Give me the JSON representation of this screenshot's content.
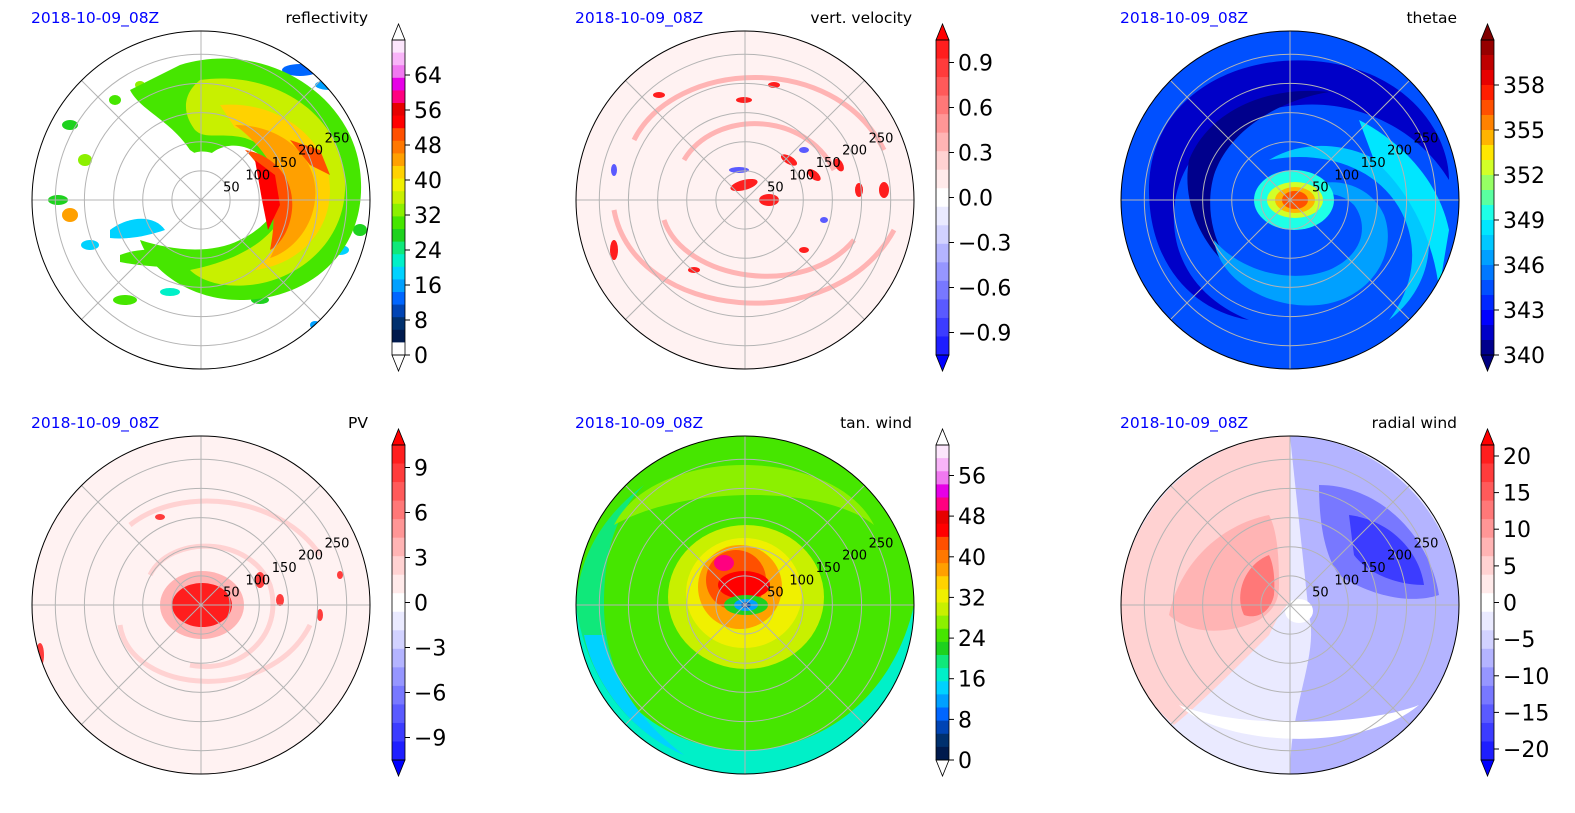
{
  "chart_data": [
    {
      "type": "heatmap",
      "projection": "polar",
      "timestamp": "2018-10-09_08Z",
      "title": "reflectivity",
      "radial_ticks": [
        "50",
        "100",
        "150",
        "200",
        "250"
      ],
      "colorbar": {
        "ticks": [
          "0",
          "8",
          "16",
          "24",
          "32",
          "40",
          "48",
          "56",
          "64"
        ],
        "tick_values": [
          0,
          8,
          16,
          24,
          32,
          40,
          48,
          56,
          64
        ],
        "range": [
          0,
          72
        ],
        "extend": "both",
        "colors": [
          "#ffffff",
          "#001a4d",
          "#00306e",
          "#0044b4",
          "#0066ff",
          "#00a0ff",
          "#00d2ff",
          "#00f0c8",
          "#10e87a",
          "#1ed21e",
          "#46e600",
          "#8cf000",
          "#c8f000",
          "#f0f000",
          "#ffd200",
          "#ffa000",
          "#ff7800",
          "#ff5000",
          "#ff0000",
          "#e60000",
          "#ff0080",
          "#e600e6",
          "#f078f0",
          "#f8b4f8",
          "#fce6fc"
        ],
        "end_colors": [
          "#ffffff",
          "#ffffff"
        ]
      }
    },
    {
      "type": "heatmap",
      "projection": "polar",
      "timestamp": "2018-10-09_08Z",
      "title": "vert. velocity",
      "radial_ticks": [
        "50",
        "100",
        "150",
        "200",
        "250"
      ],
      "colorbar": {
        "ticks": [
          "0.9",
          "0.6",
          "0.3",
          "0.0",
          "−0.3",
          "−0.6",
          "−0.9"
        ],
        "tick_values": [
          0.9,
          0.6,
          0.3,
          0.0,
          -0.3,
          -0.6,
          -0.9
        ],
        "range": [
          -1.05,
          1.05
        ],
        "extend": "both",
        "colors": [
          "#1e1eff",
          "#3c3cff",
          "#5a5aff",
          "#7878ff",
          "#9696ff",
          "#b4b4ff",
          "#d2d2ff",
          "#eaeaff",
          "#ffffff",
          "#ffeaea",
          "#ffd2d2",
          "#ffb4b4",
          "#ff9696",
          "#ff7878",
          "#ff5a5a",
          "#ff3c3c",
          "#ff1e1e"
        ],
        "end_colors": [
          "#0000ff",
          "#ff0000"
        ]
      }
    },
    {
      "type": "heatmap",
      "projection": "polar",
      "timestamp": "2018-10-09_08Z",
      "title": "thetae",
      "radial_ticks": [
        "50",
        "100",
        "150",
        "200",
        "250"
      ],
      "colorbar": {
        "ticks": [
          "340",
          "343",
          "346",
          "349",
          "352",
          "355",
          "358"
        ],
        "tick_values": [
          340,
          343,
          346,
          349,
          352,
          355,
          358
        ],
        "range": [
          340,
          361
        ],
        "extend": "both",
        "colors": [
          "#00008c",
          "#0000c8",
          "#0000ff",
          "#0028ff",
          "#0050ff",
          "#0078ff",
          "#00a0ff",
          "#00c8ff",
          "#00e6ff",
          "#1effe6",
          "#5affa0",
          "#96ff64",
          "#d2ff28",
          "#ffe600",
          "#ffb400",
          "#ff8200",
          "#ff5000",
          "#ff1e00",
          "#e60000",
          "#be0000",
          "#960000"
        ],
        "end_colors": [
          "#000080",
          "#800000"
        ]
      }
    },
    {
      "type": "heatmap",
      "projection": "polar",
      "timestamp": "2018-10-09_08Z",
      "title": "PV",
      "radial_ticks": [
        "50",
        "100",
        "150",
        "200",
        "250"
      ],
      "colorbar": {
        "ticks": [
          "9",
          "6",
          "3",
          "0",
          "−3",
          "−6",
          "−9"
        ],
        "tick_values": [
          9,
          6,
          3,
          0,
          -3,
          -6,
          -9
        ],
        "range": [
          -10.5,
          10.5
        ],
        "extend": "both",
        "colors": [
          "#1e1eff",
          "#3c3cff",
          "#5a5aff",
          "#7878ff",
          "#9696ff",
          "#b4b4ff",
          "#d2d2ff",
          "#eaeaff",
          "#ffffff",
          "#ffeaea",
          "#ffd2d2",
          "#ffb4b4",
          "#ff9696",
          "#ff7878",
          "#ff5a5a",
          "#ff3c3c",
          "#ff1e1e"
        ],
        "end_colors": [
          "#0000ff",
          "#ff0000"
        ]
      }
    },
    {
      "type": "heatmap",
      "projection": "polar",
      "timestamp": "2018-10-09_08Z",
      "title": "tan. wind",
      "radial_ticks": [
        "50",
        "100",
        "150",
        "200",
        "250"
      ],
      "colorbar": {
        "ticks": [
          "0",
          "8",
          "16",
          "24",
          "32",
          "40",
          "48",
          "56"
        ],
        "tick_values": [
          0,
          8,
          16,
          24,
          32,
          40,
          48,
          56
        ],
        "range": [
          0,
          62
        ],
        "extend": "both",
        "colors": [
          "#001a4d",
          "#00306e",
          "#0044b4",
          "#0066ff",
          "#00a0ff",
          "#00d2ff",
          "#00f0c8",
          "#10e87a",
          "#1ed21e",
          "#46e600",
          "#8cf000",
          "#c8f000",
          "#f0f000",
          "#ffd200",
          "#ffa000",
          "#ff7800",
          "#ff5000",
          "#ff0000",
          "#e60000",
          "#ff0080",
          "#e600e6",
          "#f078f0",
          "#f8b4f8",
          "#fce6fc"
        ],
        "end_colors": [
          "#ffffff",
          "#ffffff"
        ]
      }
    },
    {
      "type": "heatmap",
      "projection": "polar",
      "timestamp": "2018-10-09_08Z",
      "title": "radial wind",
      "radial_ticks": [
        "50",
        "100",
        "150",
        "200",
        "250"
      ],
      "colorbar": {
        "ticks": [
          "20",
          "15",
          "10",
          "5",
          "0",
          "−5",
          "−10",
          "−15",
          "−20"
        ],
        "tick_values": [
          20,
          15,
          10,
          5,
          0,
          -5,
          -10,
          -15,
          -20
        ],
        "range": [
          -21.5,
          21.5
        ],
        "extend": "both",
        "colors": [
          "#1e1eff",
          "#3c3cff",
          "#5a5aff",
          "#7878ff",
          "#9696ff",
          "#b4b4ff",
          "#d2d2ff",
          "#eaeaff",
          "#ffffff",
          "#ffeaea",
          "#ffd2d2",
          "#ffb4b4",
          "#ff9696",
          "#ff7878",
          "#ff5a5a",
          "#ff3c3c",
          "#ff1e1e"
        ],
        "end_colors": [
          "#0000ff",
          "#ff0000"
        ]
      }
    }
  ],
  "style": {
    "timestamp_color": "#0000ff",
    "grid_color": "#b4b4b4",
    "frame_color": "#000000"
  }
}
